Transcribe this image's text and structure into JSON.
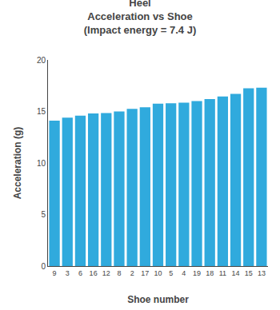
{
  "chart_data": {
    "type": "bar",
    "title": "Heel\nAcceleration vs Shoe\n(Impact energy = 7.4 J)",
    "xlabel": "Shoe number",
    "ylabel": "Acceleration (g)",
    "categories": [
      "9",
      "3",
      "6",
      "16",
      "12",
      "8",
      "2",
      "17",
      "10",
      "5",
      "4",
      "19",
      "18",
      "11",
      "14",
      "15",
      "13"
    ],
    "values": [
      14.1,
      14.4,
      14.6,
      14.8,
      14.85,
      15.0,
      15.25,
      15.4,
      15.75,
      15.8,
      15.85,
      16.0,
      16.2,
      16.45,
      16.7,
      17.25,
      17.3
    ],
    "color": "#30AADD",
    "ylim": [
      0,
      20
    ],
    "yticks": [
      0,
      5,
      10,
      15,
      20
    ],
    "grid": false
  }
}
